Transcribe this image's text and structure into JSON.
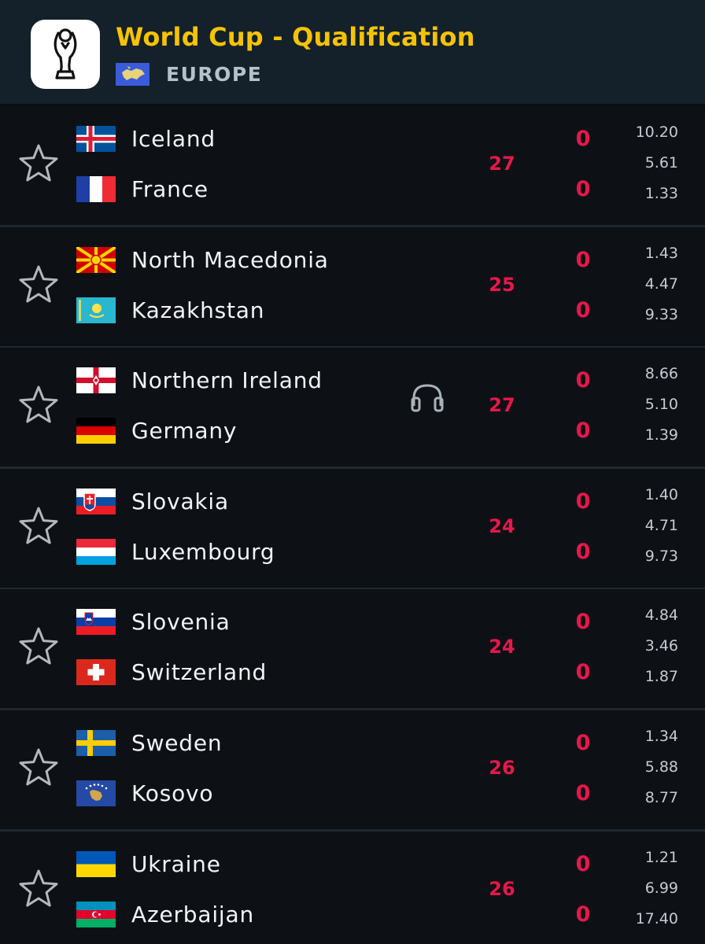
{
  "competition": {
    "title": "World Cup - Qualification",
    "region": "EUROPE",
    "logo_icon": "trophy-icon",
    "region_flag_icon": "europe-flag-icon"
  },
  "colors": {
    "title": "#f5c300",
    "live": "#e8174a",
    "header_bg": "#14202a",
    "row_bg": "#0d1116",
    "text": "#f2f4f7",
    "muted": "#c4cbd2"
  },
  "matches": [
    {
      "minute": "27",
      "has_audio": false,
      "home": {
        "name": "Iceland",
        "flag": "iceland-flag-icon",
        "score": "0"
      },
      "away": {
        "name": "France",
        "flag": "france-flag-icon",
        "score": "0"
      },
      "odds": [
        "10.20",
        "5.61",
        "1.33"
      ]
    },
    {
      "minute": "25",
      "has_audio": false,
      "home": {
        "name": "North Macedonia",
        "flag": "north-macedonia-flag-icon",
        "score": "0"
      },
      "away": {
        "name": "Kazakhstan",
        "flag": "kazakhstan-flag-icon",
        "score": "0"
      },
      "odds": [
        "1.43",
        "4.47",
        "9.33"
      ]
    },
    {
      "minute": "27",
      "has_audio": true,
      "home": {
        "name": "Northern Ireland",
        "flag": "northern-ireland-flag-icon",
        "score": "0"
      },
      "away": {
        "name": "Germany",
        "flag": "germany-flag-icon",
        "score": "0"
      },
      "odds": [
        "8.66",
        "5.10",
        "1.39"
      ]
    },
    {
      "minute": "24",
      "has_audio": false,
      "home": {
        "name": "Slovakia",
        "flag": "slovakia-flag-icon",
        "score": "0"
      },
      "away": {
        "name": "Luxembourg",
        "flag": "luxembourg-flag-icon",
        "score": "0"
      },
      "odds": [
        "1.40",
        "4.71",
        "9.73"
      ]
    },
    {
      "minute": "24",
      "has_audio": false,
      "home": {
        "name": "Slovenia",
        "flag": "slovenia-flag-icon",
        "score": "0"
      },
      "away": {
        "name": "Switzerland",
        "flag": "switzerland-flag-icon",
        "score": "0"
      },
      "odds": [
        "4.84",
        "3.46",
        "1.87"
      ]
    },
    {
      "minute": "26",
      "has_audio": false,
      "home": {
        "name": "Sweden",
        "flag": "sweden-flag-icon",
        "score": "0"
      },
      "away": {
        "name": "Kosovo",
        "flag": "kosovo-flag-icon",
        "score": "0"
      },
      "odds": [
        "1.34",
        "5.88",
        "8.77"
      ]
    },
    {
      "minute": "26",
      "has_audio": false,
      "home": {
        "name": "Ukraine",
        "flag": "ukraine-flag-icon",
        "score": "0"
      },
      "away": {
        "name": "Azerbaijan",
        "flag": "azerbaijan-flag-icon",
        "score": "0"
      },
      "odds": [
        "1.21",
        "6.99",
        "17.40"
      ]
    }
  ]
}
